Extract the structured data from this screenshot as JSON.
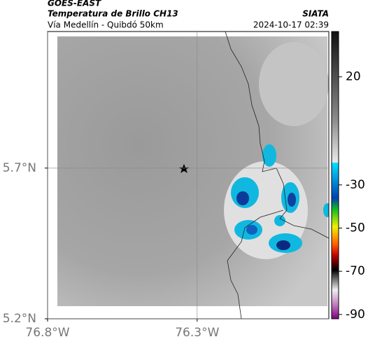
{
  "header": {
    "source": "GOES-EAST",
    "product": "Temperatura de Brillo CH13",
    "region": "Vía Medellín - Quibdó 50km",
    "agency": "SIATA",
    "timestamp": "2024-10-17 02:39"
  },
  "map": {
    "xlim": [
      -76.8,
      -75.86
    ],
    "ylim": [
      5.2,
      6.153
    ],
    "xticks": [
      {
        "value": -76.8,
        "label": "76.8°W"
      },
      {
        "value": -76.3,
        "label": "76.3°W"
      }
    ],
    "yticks": [
      {
        "value": 5.2,
        "label": "5.2°N"
      },
      {
        "value": 5.7,
        "label": "5.7°N"
      }
    ],
    "grid": true
  },
  "colorbar": {
    "lim": [
      -92,
      41
    ],
    "ticks": [
      20,
      -30,
      -50,
      -70,
      -90
    ]
  }
}
